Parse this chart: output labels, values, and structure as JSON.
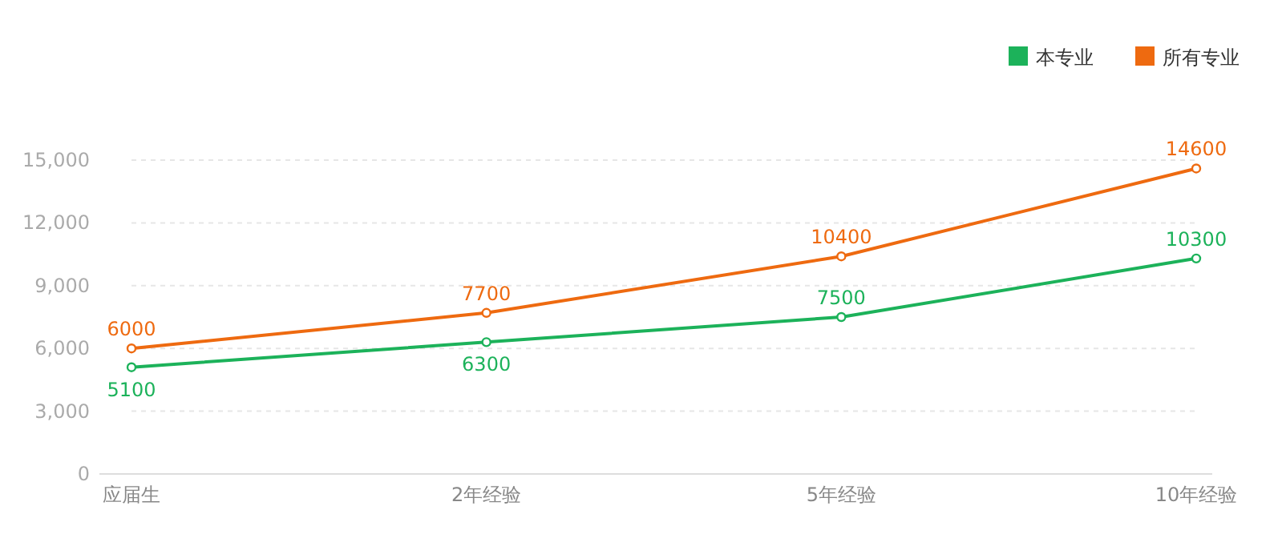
{
  "chart_data": {
    "type": "line",
    "categories": [
      "应届生",
      "2年经验",
      "5年经验",
      "10年经验"
    ],
    "series": [
      {
        "name": "本专业",
        "color": "#1cb25a",
        "values": [
          5100,
          6300,
          7500,
          10300
        ]
      },
      {
        "name": "所有专业",
        "color": "#ee6a10",
        "values": [
          6000,
          7700,
          10400,
          14600
        ]
      }
    ],
    "ylim": [
      0,
      15000
    ],
    "yticks": [
      0,
      {
        "value": 3000,
        "label": "3,000"
      },
      {
        "value": 6000,
        "label": "6,000"
      },
      {
        "value": 9000,
        "label": "9,000"
      },
      {
        "value": 12000,
        "label": "12,000"
      },
      {
        "value": 15000,
        "label": "15,000"
      }
    ],
    "grid": "y",
    "legend": "top right",
    "marker": "circle",
    "line_style": "solid",
    "data_labels": true
  }
}
